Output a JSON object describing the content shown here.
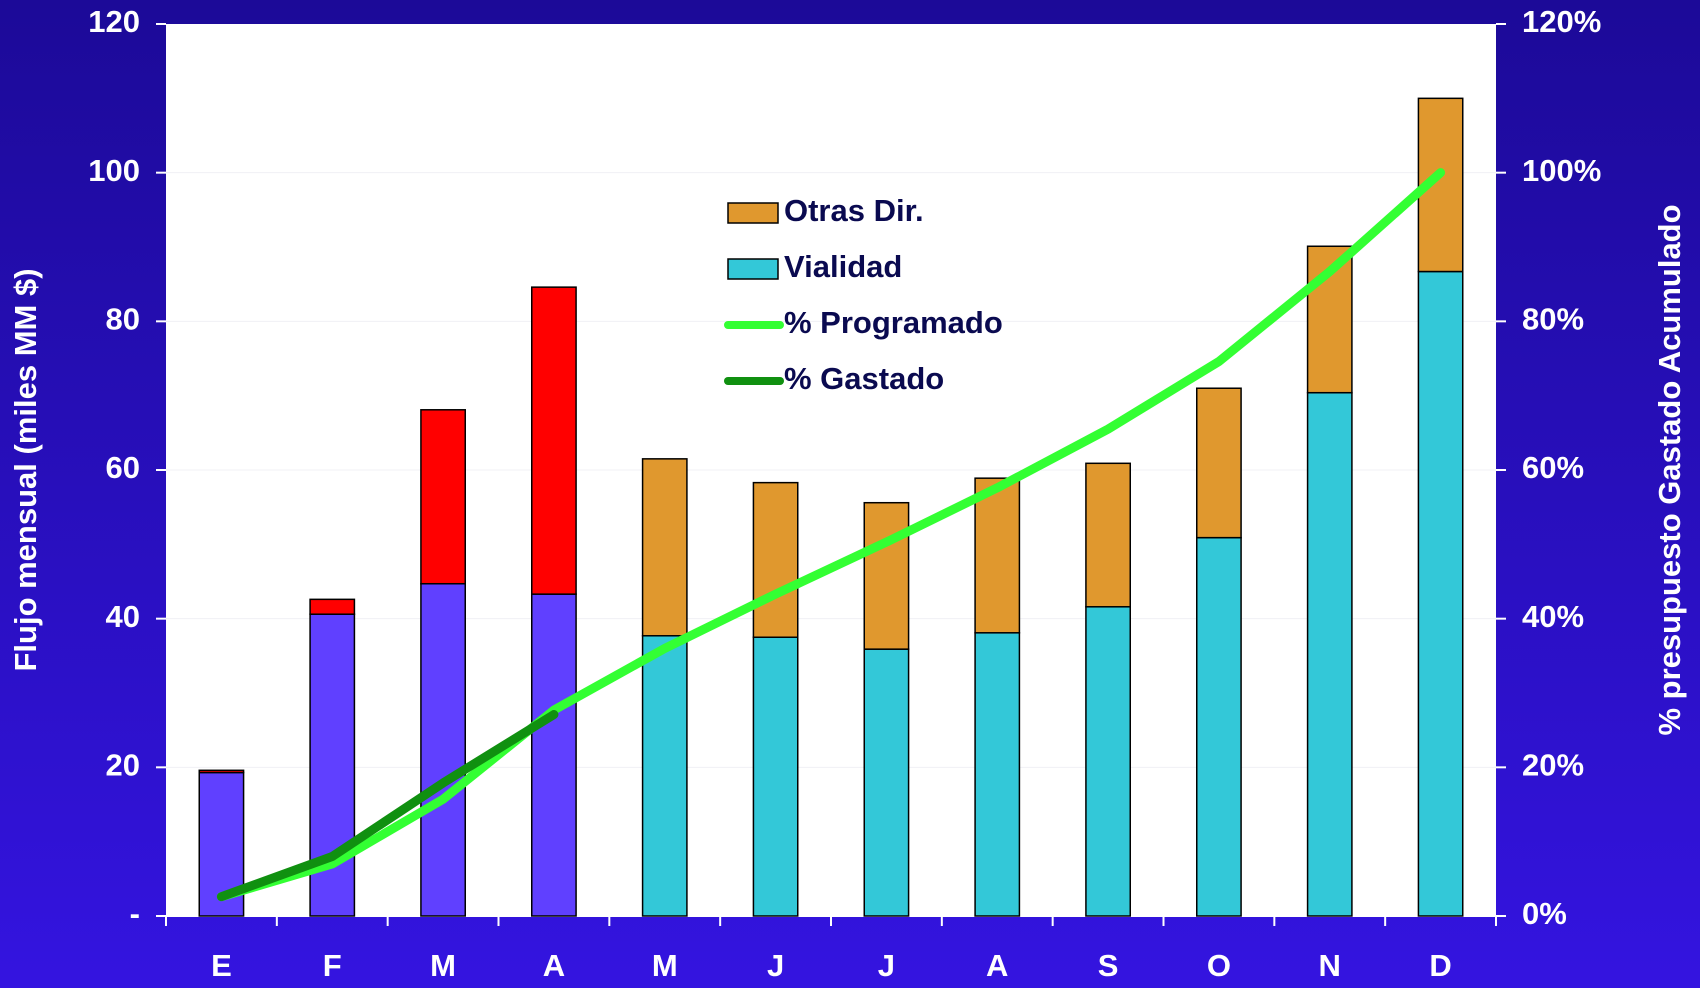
{
  "chart_data": {
    "type": "bar",
    "stacked": true,
    "categories": [
      "E",
      "F",
      "M",
      "A",
      "M",
      "J",
      "J",
      "A",
      "S",
      "O",
      "N",
      "D"
    ],
    "series": [
      {
        "name": "Vialidad",
        "color": "#33c8d8",
        "point_colors": [
          "#6040ff",
          "#6040ff",
          "#6040ff",
          "#6040ff",
          "#33c8d8",
          "#33c8d8",
          "#33c8d8",
          "#33c8d8",
          "#33c8d8",
          "#33c8d8",
          "#33c8d8",
          "#33c8d8"
        ],
        "values": [
          19.3,
          40.6,
          44.7,
          43.3,
          37.7,
          37.5,
          35.9,
          38.1,
          41.6,
          50.9,
          70.4,
          86.7
        ]
      },
      {
        "name": "Otras Dir.",
        "color": "#e0982e",
        "point_colors": [
          "#ff0000",
          "#ff0000",
          "#ff0000",
          "#ff0000",
          "#e0982e",
          "#e0982e",
          "#e0982e",
          "#e0982e",
          "#e0982e",
          "#e0982e",
          "#e0982e",
          "#e0982e"
        ],
        "values": [
          0.3,
          2.0,
          23.4,
          41.3,
          23.8,
          20.8,
          19.7,
          20.8,
          19.3,
          20.1,
          19.7,
          23.3
        ]
      },
      {
        "name": "% Programado",
        "type": "line",
        "axis": "y2",
        "color": "#33ff33",
        "values": [
          2.6,
          7.0,
          15.7,
          27.7,
          36.0,
          43.3,
          50.3,
          57.6,
          65.5,
          74.6,
          86.7,
          100.0
        ]
      },
      {
        "name": "% Gastado",
        "type": "line",
        "axis": "y2",
        "color": "#109010",
        "values": [
          2.6,
          8.0,
          17.9,
          27.1,
          null,
          null,
          null,
          null,
          null,
          null,
          null,
          null
        ]
      }
    ],
    "y_label": "Flujo mensual (miles MM $)",
    "y2_label": "% presupuesto Gastado Acumulado",
    "ylim": [
      0,
      120
    ],
    "yticks": [
      {
        "value": 0,
        "label": "-"
      },
      20,
      40,
      60,
      80,
      100,
      120
    ],
    "y2lim": [
      0,
      120
    ],
    "y2ticks": [
      {
        "value": 0,
        "label": "0%"
      },
      {
        "value": 20,
        "label": "20%"
      },
      {
        "value": 40,
        "label": "40%"
      },
      {
        "value": 60,
        "label": "60%"
      },
      {
        "value": 80,
        "label": "80%"
      },
      {
        "value": 100,
        "label": "100%"
      },
      {
        "value": 120,
        "label": "120%"
      }
    ],
    "grid": true,
    "legend": "upper center"
  }
}
